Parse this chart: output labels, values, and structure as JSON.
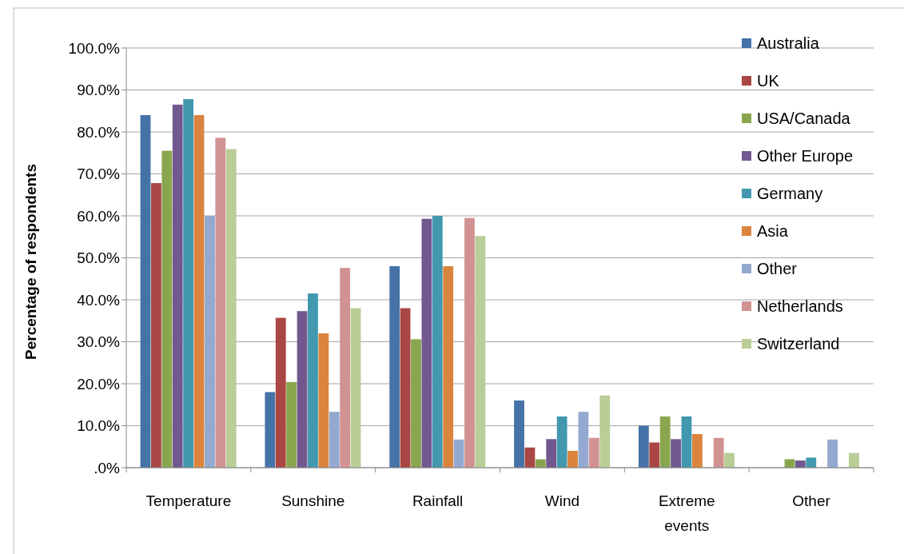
{
  "chart_data": {
    "type": "bar",
    "ylabel": "Percentage of respondents",
    "categories": [
      "Temperature",
      "Sunshine",
      "Rainfall",
      "Wind",
      "Extreme events",
      "Other"
    ],
    "series": [
      {
        "name": "Australia",
        "color": "#4572a7",
        "values": [
          84,
          18,
          48,
          16,
          10,
          0
        ]
      },
      {
        "name": "UK",
        "color": "#aa4643",
        "values": [
          67.8,
          35.7,
          38,
          4.8,
          6,
          0
        ]
      },
      {
        "name": "USA/Canada",
        "color": "#89a54e",
        "values": [
          75.5,
          20.4,
          30.6,
          2,
          12.2,
          2
        ]
      },
      {
        "name": "Other Europe",
        "color": "#71588f",
        "values": [
          86.5,
          37.3,
          59.3,
          6.8,
          6.8,
          1.7
        ]
      },
      {
        "name": "Germany",
        "color": "#4198af",
        "values": [
          87.8,
          41.5,
          60,
          12.2,
          12.2,
          2.4
        ]
      },
      {
        "name": "Asia",
        "color": "#db843d",
        "values": [
          84,
          32,
          48,
          4,
          8,
          0
        ]
      },
      {
        "name": "Other",
        "color": "#93a9cf",
        "values": [
          60,
          13.3,
          6.7,
          13.3,
          0,
          6.7
        ]
      },
      {
        "name": "Netherlands",
        "color": "#d19392",
        "values": [
          78.6,
          47.6,
          59.5,
          7.1,
          7.1,
          0
        ]
      },
      {
        "name": "Switzerland",
        "color": "#b9cd96",
        "values": [
          75.9,
          38,
          55.2,
          17.2,
          3.5,
          3.5
        ]
      }
    ],
    "ylim": [
      0,
      100
    ],
    "yticks": [
      {
        "value": 0,
        "label": ".0%"
      },
      {
        "value": 10,
        "label": "10.0%"
      },
      {
        "value": 20,
        "label": "20.0%"
      },
      {
        "value": 30,
        "label": "30.0%"
      },
      {
        "value": 40,
        "label": "40.0%"
      },
      {
        "value": 50,
        "label": "50.0%"
      },
      {
        "value": 60,
        "label": "60.0%"
      },
      {
        "value": 70,
        "label": "70.0%"
      },
      {
        "value": 80,
        "label": "80.0%"
      },
      {
        "value": 90,
        "label": "90.0%"
      },
      {
        "value": 100,
        "label": "100.0%"
      }
    ],
    "grid": "y",
    "legend": "right"
  }
}
